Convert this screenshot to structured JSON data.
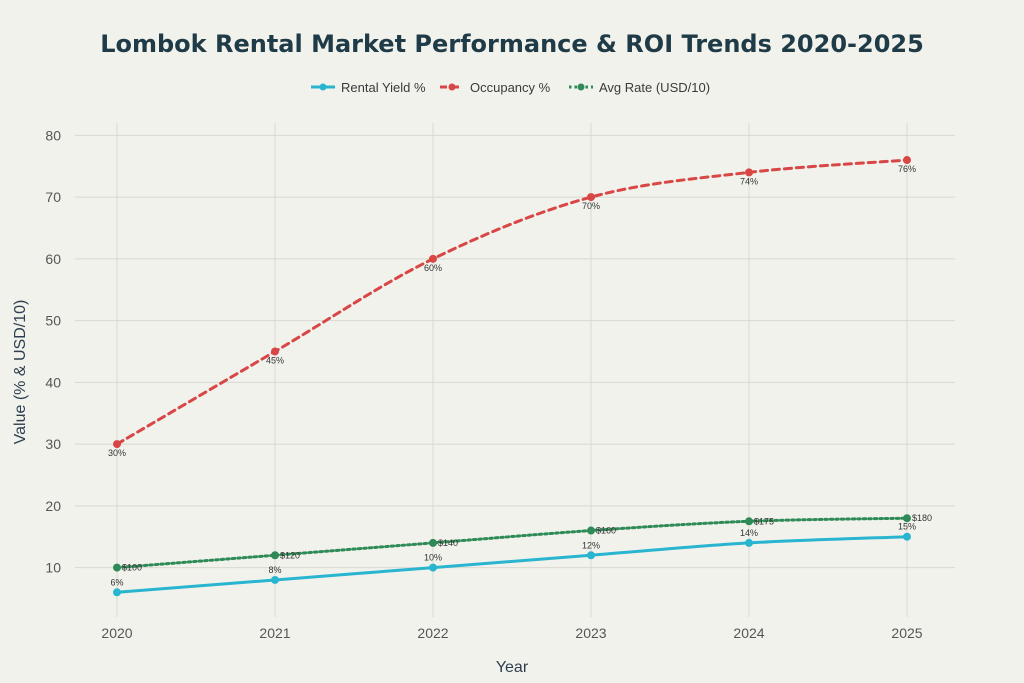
{
  "chart_data": {
    "type": "line",
    "title": "Lombok Rental Market Performance & ROI Trends 2020-2025",
    "xlabel": "Year",
    "ylabel": "Value (% & USD/10)",
    "x": [
      "2020",
      "2021",
      "2022",
      "2023",
      "2024",
      "2025"
    ],
    "ylim": [
      2,
      82
    ],
    "yticks": [
      10,
      20,
      30,
      40,
      50,
      60,
      70,
      80
    ],
    "grid": true,
    "legend_position": "top-center",
    "series": [
      {
        "name": "Rental Yield %",
        "values": [
          6,
          8,
          10,
          12,
          14,
          15
        ],
        "labels": [
          "6%",
          "8%",
          "10%",
          "12%",
          "14%",
          "15%"
        ],
        "color": "#29b5cf",
        "style": "solid",
        "label_position": "above"
      },
      {
        "name": "Occupancy %",
        "values": [
          30,
          45,
          60,
          70,
          74,
          76
        ],
        "labels": [
          "30%",
          "45%",
          "60%",
          "70%",
          "74%",
          "76%"
        ],
        "color": "#d94646",
        "style": "dashed",
        "label_position": "below"
      },
      {
        "name": "Avg Rate (USD/10)",
        "values": [
          10,
          12,
          14,
          16,
          17.5,
          18
        ],
        "labels": [
          "$100",
          "$120",
          "$140",
          "$160",
          "$175",
          "$180"
        ],
        "color": "#2e8b57",
        "style": "dotted",
        "label_position": "right"
      }
    ]
  }
}
